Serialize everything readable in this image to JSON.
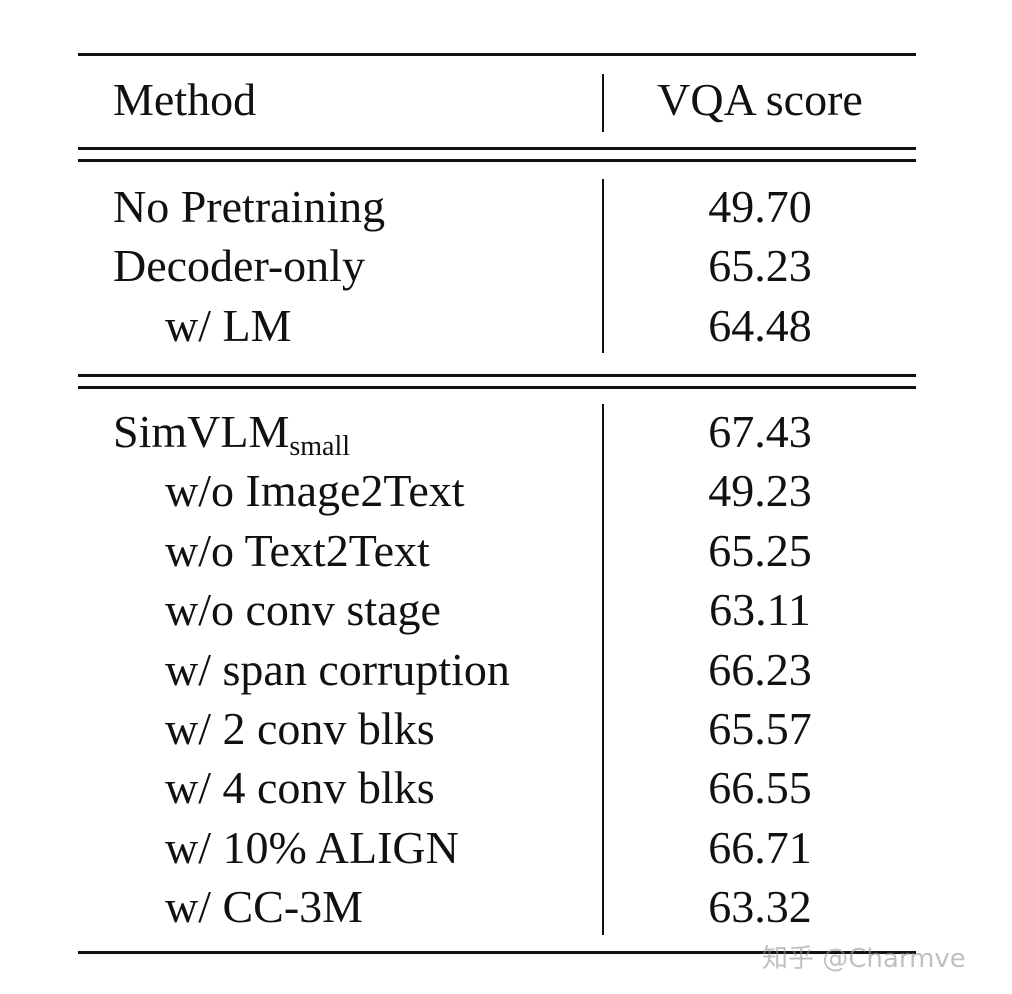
{
  "table": {
    "header": {
      "method": "Method",
      "score": "VQA score"
    },
    "groups": [
      {
        "rows": [
          {
            "method": "No Pretraining",
            "score": "49.70",
            "indent": false
          },
          {
            "method": "Decoder-only",
            "score": "65.23",
            "indent": false
          },
          {
            "method": "w/ LM",
            "score": "64.48",
            "indent": true
          }
        ]
      },
      {
        "rows": [
          {
            "method": "SimVLM",
            "method_sub": "small",
            "score": "67.43",
            "indent": false
          },
          {
            "method": "w/o Image2Text",
            "score": "49.23",
            "indent": true
          },
          {
            "method": "w/o Text2Text",
            "score": "65.25",
            "indent": true
          },
          {
            "method": "w/o conv stage",
            "score": "63.11",
            "indent": true
          },
          {
            "method": "w/ span corruption",
            "score": "66.23",
            "indent": true
          },
          {
            "method": "w/ 2 conv blks",
            "score": "65.57",
            "indent": true
          },
          {
            "method": "w/ 4 conv blks",
            "score": "66.55",
            "indent": true
          },
          {
            "method": "w/ 10% ALIGN",
            "score": "66.71",
            "indent": true
          },
          {
            "method": "w/ CC-3M",
            "score": "63.32",
            "indent": true
          }
        ]
      }
    ]
  },
  "watermark": "知乎 @Charmve"
}
